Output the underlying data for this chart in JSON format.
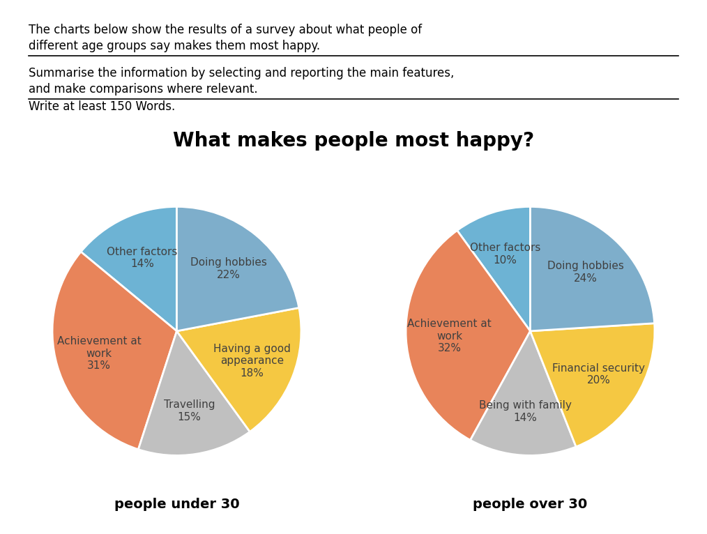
{
  "title": "What makes people most happy?",
  "title_fontsize": 20,
  "header_line1": "The charts below show the results of a survey about what people of",
  "header_line2": "different age groups say makes them most happy.",
  "header_line3": "Summarise the information by selecting and reporting the main features,",
  "header_line4": "and make comparisons where relevant.",
  "header_line5": "Write at least 150 Words.",
  "under30_label": "people under 30",
  "over30_label": "people over 30",
  "under30": {
    "labels": [
      "Other factors\n14%",
      "Achievement at\nwork\n31%",
      "Travelling\n15%",
      "Having a good\nappearance\n18%",
      "Doing hobbies\n22%"
    ],
    "values": [
      14,
      31,
      15,
      18,
      22
    ],
    "colors": [
      "#6db3d4",
      "#e8845a",
      "#c0c0c0",
      "#f5c842",
      "#7eaecb"
    ]
  },
  "over30": {
    "labels": [
      "Other factors\n10%",
      "Achievement at\nwork\n32%",
      "Being with family\n14%",
      "Financial security\n20%",
      "Doing hobbies\n24%"
    ],
    "values": [
      10,
      32,
      14,
      20,
      24
    ],
    "colors": [
      "#6db3d4",
      "#e8845a",
      "#c0c0c0",
      "#f5c842",
      "#7eaecb"
    ]
  },
  "background_color": "#ffffff",
  "text_color": "#404040",
  "header_fontsize": 12,
  "label_fontsize": 11,
  "sublabel_fontsize": 14
}
